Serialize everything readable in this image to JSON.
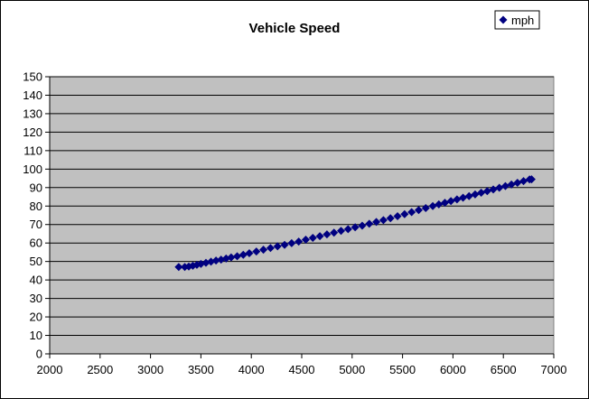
{
  "chart_data": {
    "type": "scatter",
    "title": "Vehicle Speed",
    "xlabel": "",
    "ylabel": "",
    "xlim": [
      2000,
      7000
    ],
    "ylim": [
      0,
      150
    ],
    "x_ticks": [
      2000,
      2500,
      3000,
      3500,
      4000,
      4500,
      5000,
      5500,
      6000,
      6500,
      7000
    ],
    "y_ticks": [
      0,
      10,
      20,
      30,
      40,
      50,
      60,
      70,
      80,
      90,
      100,
      110,
      120,
      130,
      140,
      150
    ],
    "grid": "horizontal",
    "legend_position": "top-right",
    "plot_background": "#C0C0C0",
    "series": [
      {
        "name": "mph",
        "color": "#000080",
        "marker": "diamond",
        "points": [
          [
            3280,
            47
          ],
          [
            3340,
            47
          ],
          [
            3380,
            47.3
          ],
          [
            3420,
            47.7
          ],
          [
            3460,
            48.2
          ],
          [
            3500,
            48.7
          ],
          [
            3550,
            49.3
          ],
          [
            3600,
            49.9
          ],
          [
            3650,
            50.5
          ],
          [
            3700,
            51
          ],
          [
            3750,
            51.6
          ],
          [
            3800,
            52.2
          ],
          [
            3860,
            52.8
          ],
          [
            3920,
            53.6
          ],
          [
            3980,
            54.5
          ],
          [
            4050,
            55.4
          ],
          [
            4120,
            56.4
          ],
          [
            4190,
            57.3
          ],
          [
            4260,
            58.2
          ],
          [
            4330,
            59
          ],
          [
            4400,
            59.9
          ],
          [
            4470,
            60.8
          ],
          [
            4540,
            61.8
          ],
          [
            4610,
            62.8
          ],
          [
            4680,
            63.7
          ],
          [
            4750,
            64.7
          ],
          [
            4820,
            65.6
          ],
          [
            4890,
            66.6
          ],
          [
            4960,
            67.5
          ],
          [
            5030,
            68.5
          ],
          [
            5100,
            69.4
          ],
          [
            5170,
            70.4
          ],
          [
            5240,
            71.4
          ],
          [
            5310,
            72.4
          ],
          [
            5380,
            73.4
          ],
          [
            5450,
            74.5
          ],
          [
            5520,
            75.6
          ],
          [
            5590,
            76.7
          ],
          [
            5660,
            77.8
          ],
          [
            5730,
            78.9
          ],
          [
            5800,
            80
          ],
          [
            5860,
            80.9
          ],
          [
            5920,
            81.8
          ],
          [
            5980,
            82.7
          ],
          [
            6040,
            83.6
          ],
          [
            6100,
            84.5
          ],
          [
            6160,
            85.4
          ],
          [
            6220,
            86.3
          ],
          [
            6280,
            87.2
          ],
          [
            6340,
            88.1
          ],
          [
            6400,
            89
          ],
          [
            6460,
            89.9
          ],
          [
            6520,
            90.8
          ],
          [
            6580,
            91.7
          ],
          [
            6640,
            92.6
          ],
          [
            6700,
            93.5
          ],
          [
            6760,
            94.4
          ],
          [
            6780,
            94.5
          ]
        ]
      }
    ]
  }
}
